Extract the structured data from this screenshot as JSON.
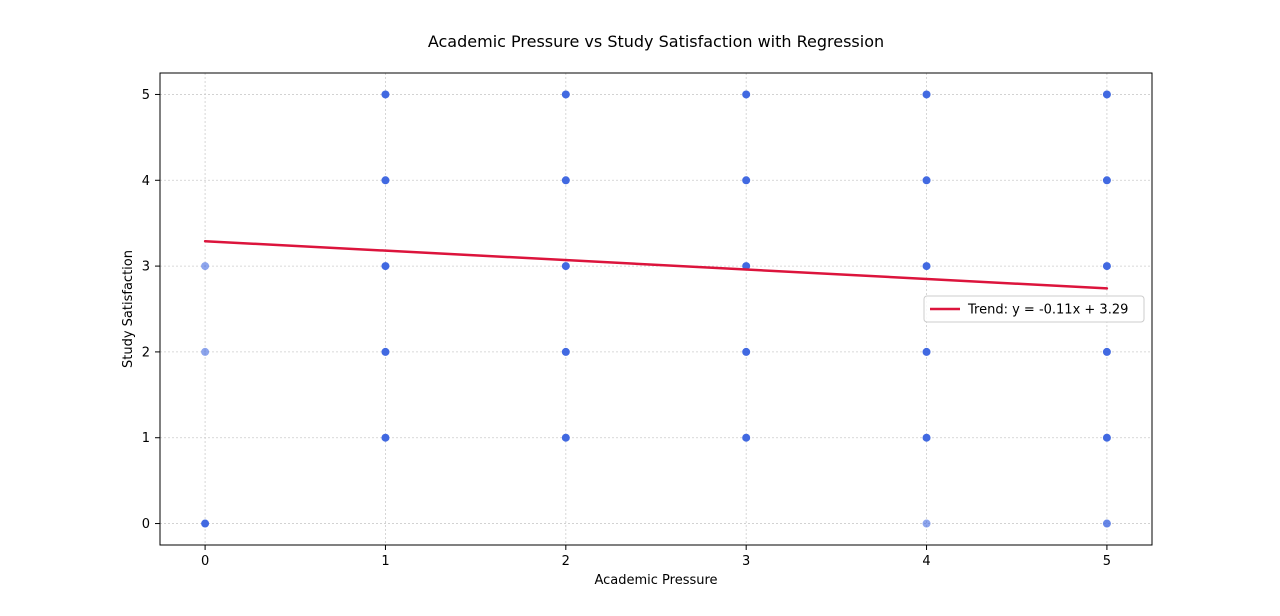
{
  "chart_data": {
    "type": "scatter",
    "title": "Academic Pressure vs Study Satisfaction with Regression",
    "xlabel": "Academic Pressure",
    "ylabel": "Study Satisfaction",
    "xlim": [
      -0.25,
      5.25
    ],
    "ylim": [
      -0.25,
      5.25
    ],
    "xticks": [
      "0",
      "1",
      "2",
      "3",
      "4",
      "5"
    ],
    "yticks": [
      "0",
      "1",
      "2",
      "3",
      "4",
      "5"
    ],
    "grid": true,
    "legend_position": "right",
    "colors": {
      "points": "#4169e1",
      "trend": "#dc143c",
      "grid": "#cccccc"
    },
    "series": [
      {
        "kind": "points",
        "points": [
          {
            "x": 0,
            "y": 0,
            "opacity": 1.0
          },
          {
            "x": 0,
            "y": 2,
            "opacity": 0.6
          },
          {
            "x": 0,
            "y": 3,
            "opacity": 0.6
          },
          {
            "x": 1,
            "y": 1,
            "opacity": 1.0
          },
          {
            "x": 1,
            "y": 2,
            "opacity": 1.0
          },
          {
            "x": 1,
            "y": 3,
            "opacity": 1.0
          },
          {
            "x": 1,
            "y": 4,
            "opacity": 1.0
          },
          {
            "x": 1,
            "y": 5,
            "opacity": 1.0
          },
          {
            "x": 2,
            "y": 1,
            "opacity": 1.0
          },
          {
            "x": 2,
            "y": 2,
            "opacity": 1.0
          },
          {
            "x": 2,
            "y": 3,
            "opacity": 1.0
          },
          {
            "x": 2,
            "y": 4,
            "opacity": 1.0
          },
          {
            "x": 2,
            "y": 5,
            "opacity": 1.0
          },
          {
            "x": 3,
            "y": 1,
            "opacity": 1.0
          },
          {
            "x": 3,
            "y": 2,
            "opacity": 1.0
          },
          {
            "x": 3,
            "y": 3,
            "opacity": 1.0
          },
          {
            "x": 3,
            "y": 4,
            "opacity": 1.0
          },
          {
            "x": 3,
            "y": 5,
            "opacity": 1.0
          },
          {
            "x": 4,
            "y": 0,
            "opacity": 0.6
          },
          {
            "x": 4,
            "y": 1,
            "opacity": 1.0
          },
          {
            "x": 4,
            "y": 2,
            "opacity": 1.0
          },
          {
            "x": 4,
            "y": 3,
            "opacity": 1.0
          },
          {
            "x": 4,
            "y": 4,
            "opacity": 1.0
          },
          {
            "x": 4,
            "y": 5,
            "opacity": 1.0
          },
          {
            "x": 5,
            "y": 0,
            "opacity": 0.8
          },
          {
            "x": 5,
            "y": 1,
            "opacity": 1.0
          },
          {
            "x": 5,
            "y": 2,
            "opacity": 1.0
          },
          {
            "x": 5,
            "y": 3,
            "opacity": 1.0
          },
          {
            "x": 5,
            "y": 4,
            "opacity": 1.0
          },
          {
            "x": 5,
            "y": 5,
            "opacity": 1.0
          }
        ]
      },
      {
        "kind": "line",
        "name": "Trend: y = -0.11x + 3.29",
        "slope": -0.11,
        "intercept": 3.29,
        "x": [
          0,
          5
        ]
      }
    ]
  }
}
